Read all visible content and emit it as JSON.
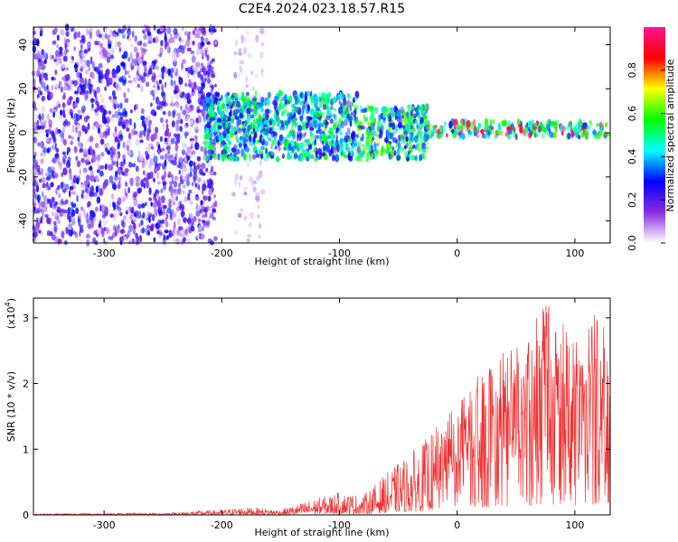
{
  "figure": {
    "title": "C2E4.2024.023.18.57.R15"
  },
  "chart_data": [
    {
      "type": "heatmap",
      "title": "",
      "xlabel": "Height of straight line (km)",
      "ylabel": "Frequency (Hz)",
      "xlim": [
        -360,
        130
      ],
      "ylim": [
        -50,
        48
      ],
      "x_ticks": [
        "-300",
        "-200",
        "-100",
        "0",
        "100"
      ],
      "x_tick_values": [
        -300,
        -200,
        -100,
        0,
        100
      ],
      "y_ticks": [
        "-40",
        "-20",
        "0",
        "20",
        "40"
      ],
      "y_tick_values": [
        -40,
        -20,
        0,
        20,
        40
      ],
      "colorbar": {
        "label": "Normalized spectral amplitude",
        "range": [
          0.0,
          1.0
        ],
        "ticks": [
          "0.0",
          "0.2",
          "0.4",
          "0.6",
          "0.8"
        ],
        "tick_values": [
          0.0,
          0.2,
          0.4,
          0.6,
          0.8
        ],
        "colormap": [
          "#ffffff",
          "#8a2be2",
          "#0000ff",
          "#00ffff",
          "#00ff00",
          "#ffff00",
          "#ff0000",
          "#ff1493"
        ]
      },
      "regions": [
        {
          "x_range": [
            -360,
            -205
          ],
          "freq_range": [
            -50,
            48
          ],
          "typical_amplitude": 0.15,
          "description_level": "broadband"
        },
        {
          "x_range": [
            -190,
            -165
          ],
          "freq_range": [
            -50,
            48
          ],
          "typical_amplitude": 0.05
        },
        {
          "x_range": [
            -215,
            -85
          ],
          "freq_range": [
            -12,
            18
          ],
          "typical_amplitude": 0.4
        },
        {
          "x_range": [
            -85,
            -25
          ],
          "freq_range": [
            -12,
            12
          ],
          "typical_amplitude": 0.45
        },
        {
          "x_range": [
            -25,
            130
          ],
          "freq_range": [
            -2,
            5
          ],
          "typical_amplitude": 0.85
        }
      ]
    },
    {
      "type": "line",
      "title": "",
      "xlabel": "Height of straight line (km)",
      "ylabel": "SNR (10 * v/v)",
      "y_multiplier": "(x10",
      "y_multiplier_exp": "4",
      "xlim": [
        -360,
        130
      ],
      "ylim": [
        0,
        3.3
      ],
      "x_ticks": [
        "-300",
        "-200",
        "-100",
        "0",
        "100"
      ],
      "x_tick_values": [
        -300,
        -200,
        -100,
        0,
        100
      ],
      "y_ticks": [
        "0",
        "1",
        "2",
        "3"
      ],
      "y_tick_values": [
        0,
        1,
        2,
        3
      ],
      "color": "#ee3333",
      "envelope": [
        {
          "x": -360,
          "y": 0.02
        },
        {
          "x": -250,
          "y": 0.03
        },
        {
          "x": -200,
          "y": 0.08
        },
        {
          "x": -180,
          "y": 0.12
        },
        {
          "x": -150,
          "y": 0.08
        },
        {
          "x": -120,
          "y": 0.25
        },
        {
          "x": -100,
          "y": 0.35
        },
        {
          "x": -80,
          "y": 0.3
        },
        {
          "x": -50,
          "y": 0.8
        },
        {
          "x": -30,
          "y": 1.1
        },
        {
          "x": -10,
          "y": 1.5
        },
        {
          "x": 10,
          "y": 1.9
        },
        {
          "x": 30,
          "y": 2.5
        },
        {
          "x": 60,
          "y": 2.6
        },
        {
          "x": 72,
          "y": 3.3
        },
        {
          "x": 100,
          "y": 2.8
        },
        {
          "x": 125,
          "y": 3.2
        },
        {
          "x": 130,
          "y": 2.0
        }
      ]
    }
  ]
}
